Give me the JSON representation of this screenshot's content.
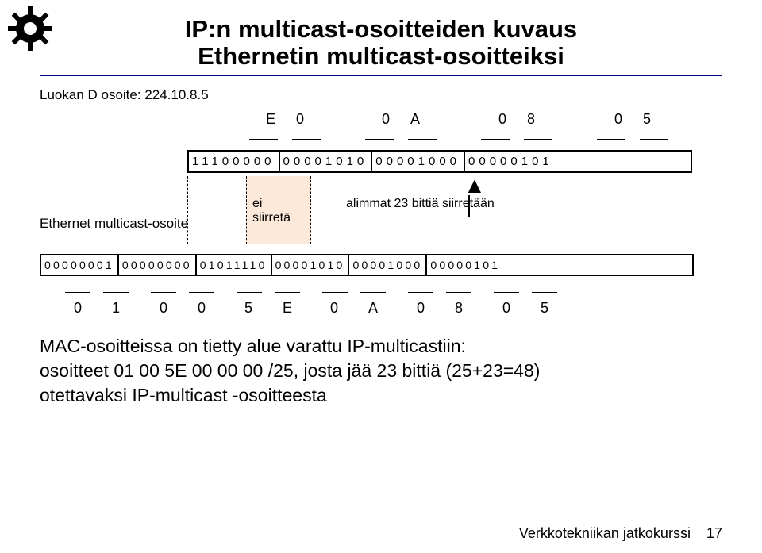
{
  "title": {
    "line1": "IP:n multicast-osoitteiden kuvaus",
    "line2": "Ethernetin multicast-osoitteiksi",
    "color": "#000000",
    "fontsize": 31
  },
  "rule_color": "#000080",
  "diagram": {
    "class_d_label": "Luokan D osoite: 224.10.8.5",
    "ip_hex_pairs": [
      [
        "E",
        "0"
      ],
      [
        "0",
        "A"
      ],
      [
        "0",
        "8"
      ],
      [
        "0",
        "5"
      ]
    ],
    "ip_bytes": [
      "11100000",
      "00001010",
      "00001000",
      "00000101"
    ],
    "shade_color": "#fde9d9",
    "anno_no_transfer_l1": "ei",
    "anno_no_transfer_l2": "siirretä",
    "anno_shift": "alimmat 23 bittiä siirretään",
    "eth_label": "Ethernet multicast-osoite",
    "mac_bytes": [
      "00000001",
      "00000000",
      "01011110",
      "00001010",
      "00001000",
      "00000101"
    ],
    "mac_hex_pairs": [
      [
        "0",
        "1"
      ],
      [
        "0",
        "0"
      ],
      [
        "5",
        "E"
      ],
      [
        "0",
        "A"
      ],
      [
        "0",
        "8"
      ],
      [
        "0",
        "5"
      ]
    ]
  },
  "body": {
    "line1": "MAC-osoitteissa on tietty alue varattu IP-multicastiin:",
    "line2": "osoitteet 01 00 5E 00 00 00 /25, josta jää 23 bittiä (25+23=48)",
    "line3": "otettavaksi IP-multicast -osoitteesta",
    "fontsize": 23
  },
  "footer": {
    "text": "Verkkotekniikan jatkokurssi",
    "page": "17",
    "fontsize": 18
  },
  "colors": {
    "background": "#ffffff",
    "text": "#000000",
    "border": "#000000"
  }
}
